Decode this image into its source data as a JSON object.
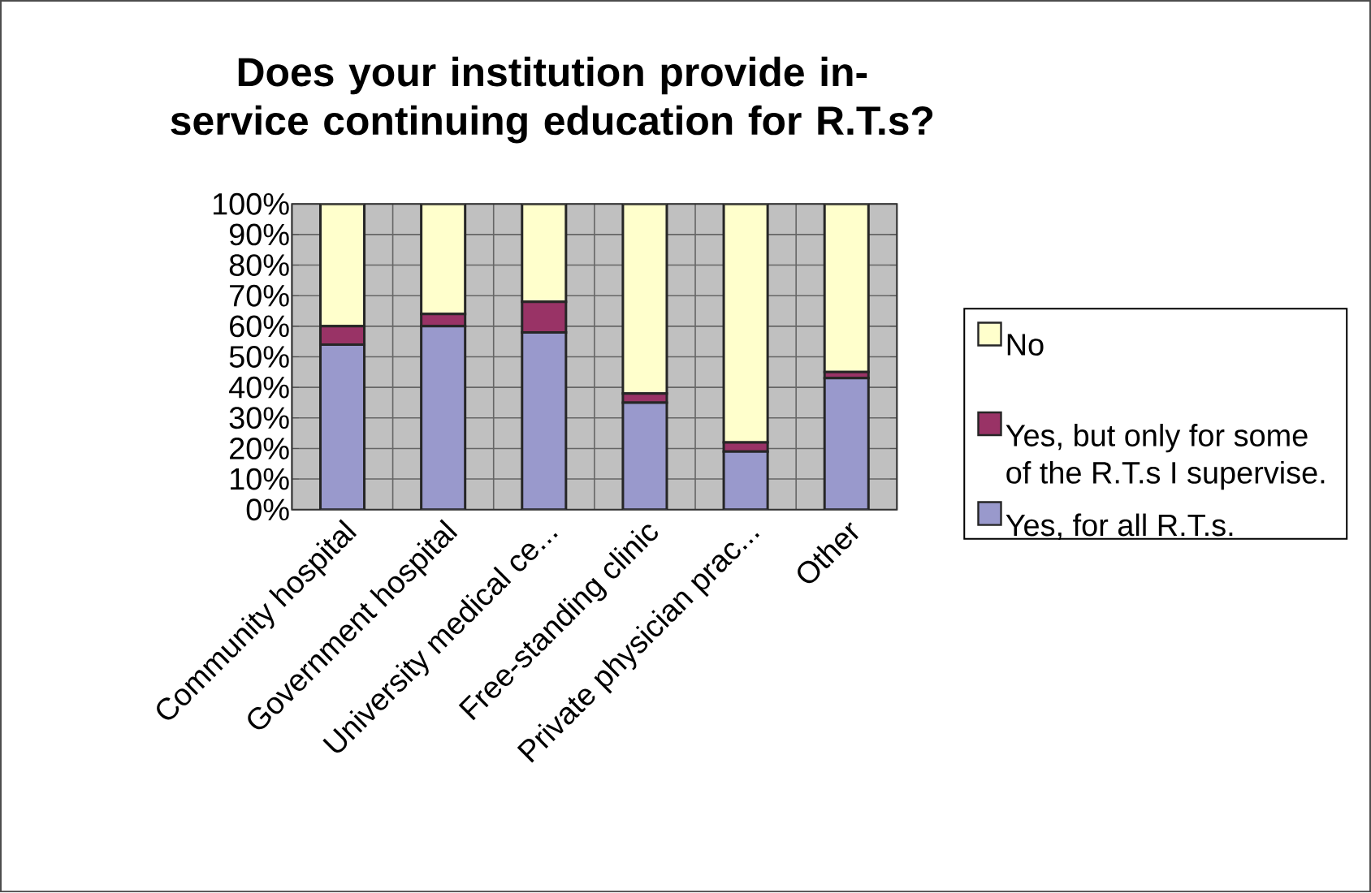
{
  "chart_data": {
    "type": "bar",
    "stacked": true,
    "title": "Does your institution provide in-service continuing education for R.T.s?",
    "categories": [
      "Community hospital",
      "Government hospital",
      "University medical ce...",
      "Free-standing clinic",
      "Private physician prac...",
      "Other"
    ],
    "series": [
      {
        "name": "Yes, for all R.T.s.",
        "color": "#9999cc",
        "values": [
          54,
          60,
          58,
          35,
          19,
          43
        ]
      },
      {
        "name": "Yes, but only for some of the R.T.s I supervise.",
        "color": "#993366",
        "values": [
          6,
          4,
          10,
          3,
          3,
          2
        ]
      },
      {
        "name": "No",
        "color": "#ffffcc",
        "values": [
          40,
          36,
          32,
          62,
          78,
          55
        ]
      }
    ],
    "ylim": [
      0,
      100
    ],
    "yticks": [
      {
        "value": 0,
        "label": "0%"
      },
      {
        "value": 10,
        "label": "10%"
      },
      {
        "value": 20,
        "label": "20%"
      },
      {
        "value": 30,
        "label": "30%"
      },
      {
        "value": 40,
        "label": "40%"
      },
      {
        "value": 50,
        "label": "50%"
      },
      {
        "value": 60,
        "label": "60%"
      },
      {
        "value": 70,
        "label": "70%"
      },
      {
        "value": 80,
        "label": "80%"
      },
      {
        "value": 90,
        "label": "90%"
      },
      {
        "value": 100,
        "label": "100%"
      }
    ],
    "grid": true,
    "legend": "right"
  }
}
